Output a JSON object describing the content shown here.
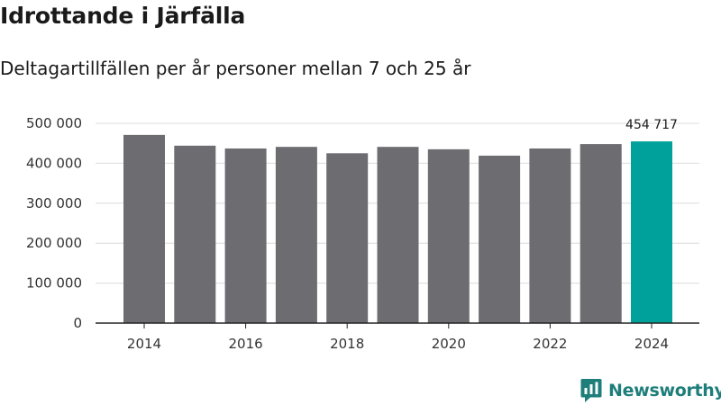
{
  "title": "Idrottande i Järfälla",
  "subtitle": "Deltagartillfällen per år personer mellan 7 och 25 år",
  "brand": {
    "name": "Newsworthy",
    "logo_icon": "bar-chart-speech-bubble-icon",
    "color": "#1e7e7a"
  },
  "colors": {
    "bar": "#6d6c71",
    "highlight": "#00a19a",
    "grid": "#dcdcdc",
    "axis": "#222222"
  },
  "chart_data": {
    "type": "bar",
    "title": "Idrottande i Järfälla",
    "subtitle": "Deltagartillfällen per år personer mellan 7 och 25 år",
    "xlabel": "",
    "ylabel": "",
    "categories": [
      "2014",
      "2015",
      "2016",
      "2017",
      "2018",
      "2019",
      "2020",
      "2021",
      "2022",
      "2023",
      "2024"
    ],
    "x_tick_labels": [
      "2014",
      "2016",
      "2018",
      "2020",
      "2022",
      "2024"
    ],
    "values": [
      471000,
      444000,
      437000,
      441000,
      425000,
      441000,
      435000,
      419000,
      437000,
      448000,
      454717
    ],
    "ylim": [
      0,
      500000
    ],
    "y_ticks": [
      0,
      100000,
      200000,
      300000,
      400000,
      500000
    ],
    "y_tick_labels": [
      "0",
      "100 000",
      "200 000",
      "300 000",
      "400 000",
      "500 000"
    ],
    "highlight_index": 10,
    "annotations": [
      {
        "category": "2024",
        "text": "454 717"
      }
    ],
    "grid": true,
    "legend": "none"
  }
}
